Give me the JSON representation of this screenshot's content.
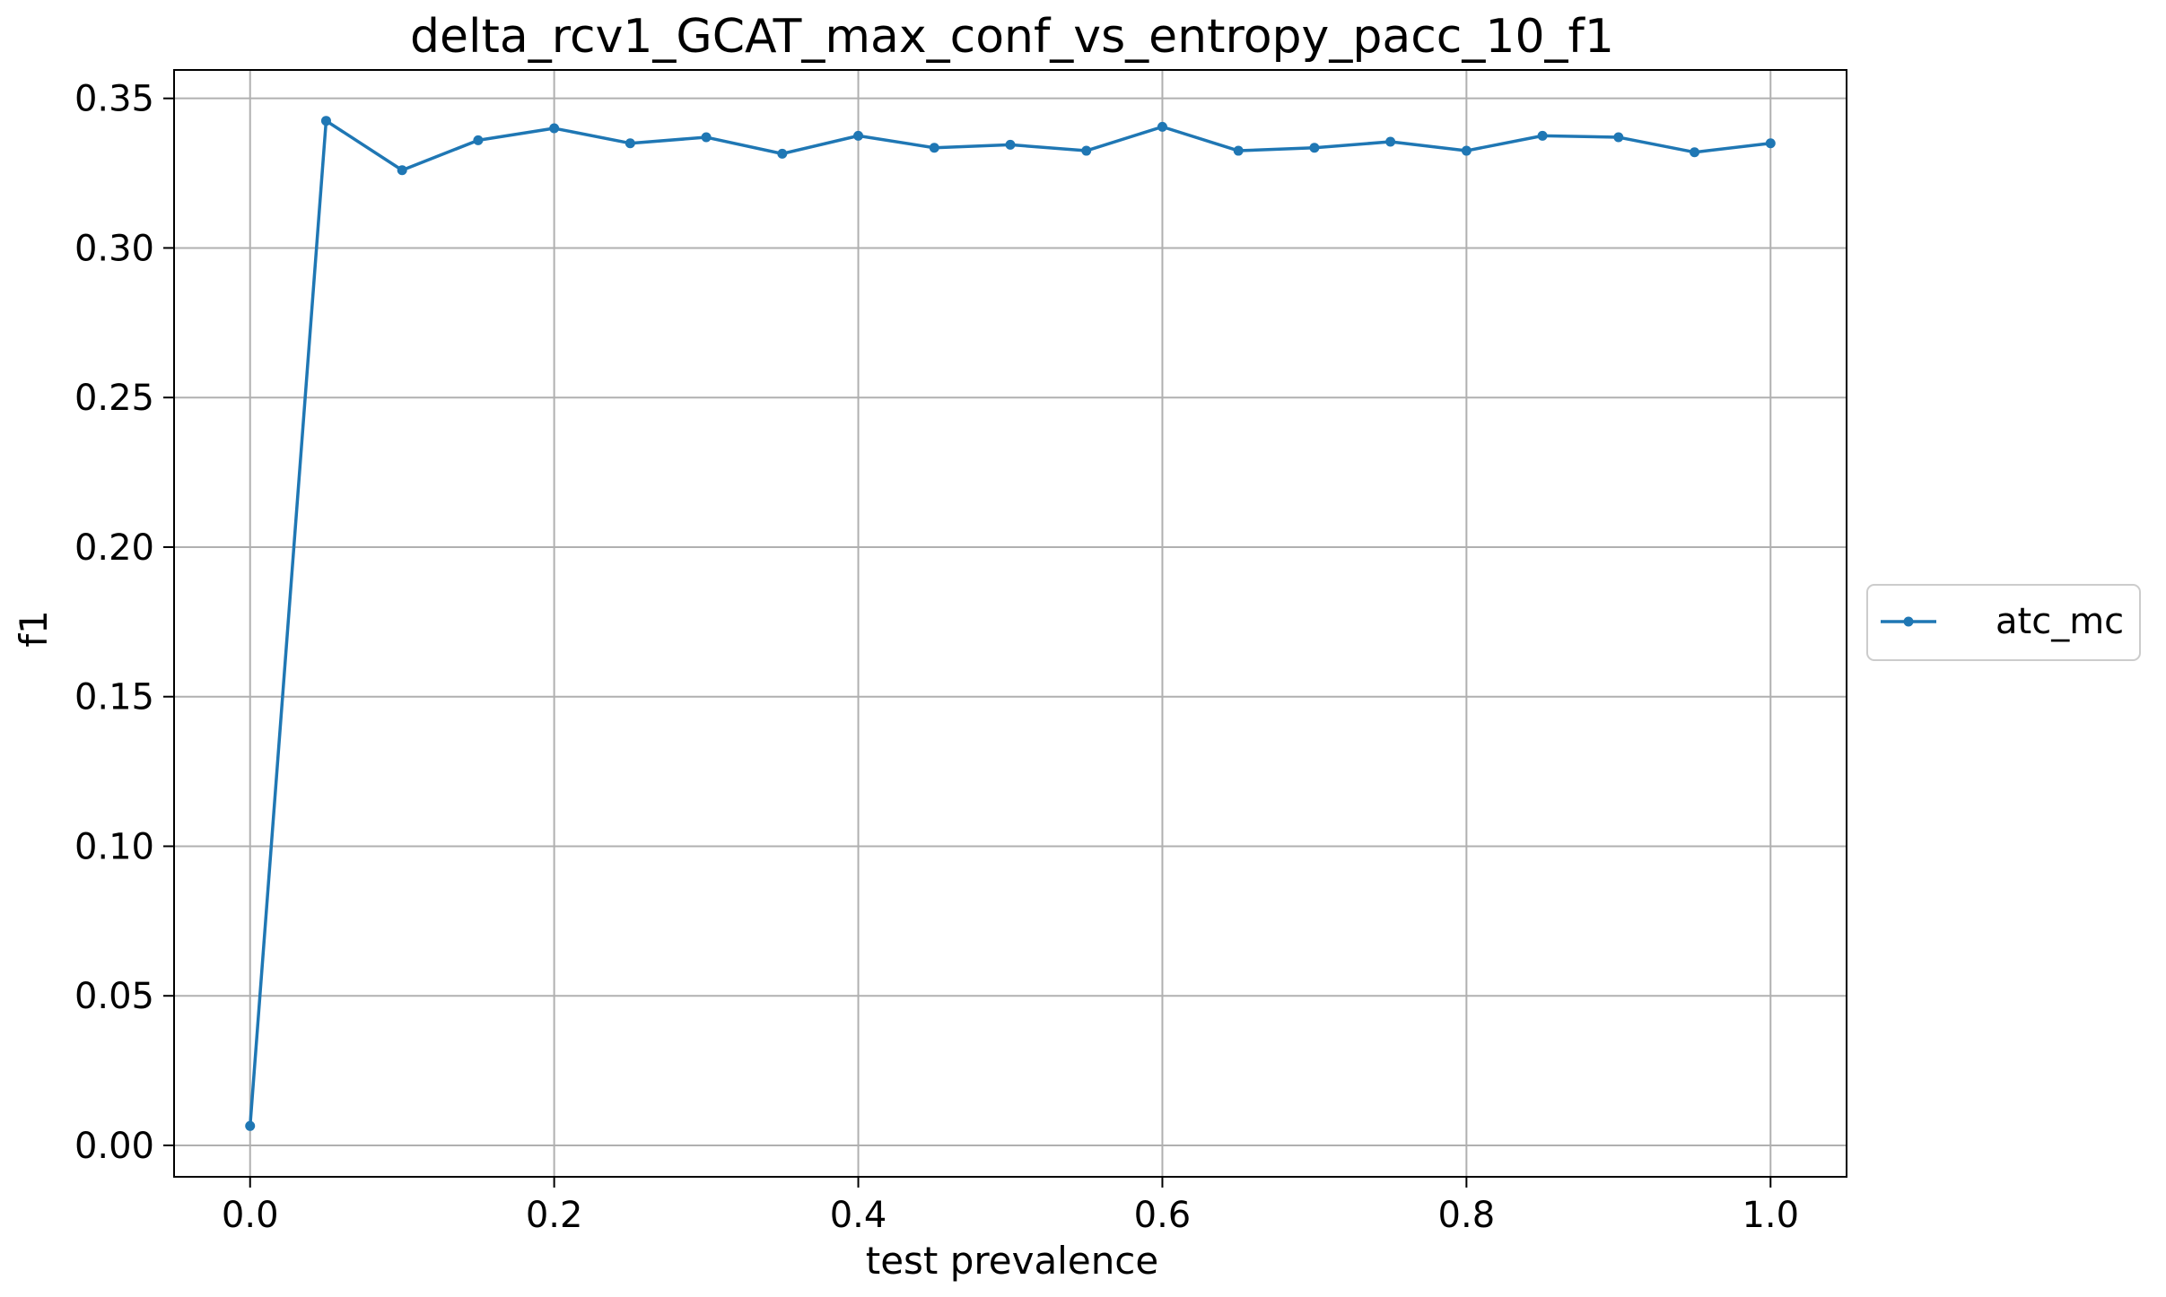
{
  "chart_data": {
    "type": "line",
    "title": "delta_rcv1_GCAT_max_conf_vs_entropy_pacc_10_f1",
    "xlabel": "test prevalence",
    "ylabel": "f1",
    "xlim": [
      -0.05,
      1.05
    ],
    "ylim": [
      -0.0105,
      0.3595
    ],
    "x_ticks": [
      0.0,
      0.2,
      0.4,
      0.6,
      0.8,
      1.0
    ],
    "x_tick_labels": [
      "0.0",
      "0.2",
      "0.4",
      "0.6",
      "0.8",
      "1.0"
    ],
    "y_ticks": [
      0.0,
      0.05,
      0.1,
      0.15,
      0.2,
      0.25,
      0.3,
      0.35
    ],
    "y_tick_labels": [
      "0.00",
      "0.05",
      "0.10",
      "0.15",
      "0.20",
      "0.25",
      "0.30",
      "0.35"
    ],
    "grid": true,
    "legend_position": "right",
    "x": [
      0.0,
      0.05,
      0.1,
      0.15,
      0.2,
      0.25,
      0.3,
      0.35,
      0.4,
      0.45,
      0.5,
      0.55,
      0.6,
      0.65,
      0.7,
      0.75,
      0.8,
      0.85,
      0.9,
      0.95,
      1.0
    ],
    "series": [
      {
        "name": "atc_mc",
        "color": "#1f77b4",
        "marker": "circle",
        "values": [
          0.0065,
          0.3425,
          0.326,
          0.336,
          0.34,
          0.335,
          0.337,
          0.3315,
          0.3375,
          0.3335,
          0.3345,
          0.3325,
          0.3405,
          0.3325,
          0.3335,
          0.3355,
          0.3325,
          0.3375,
          0.337,
          0.332,
          0.335
        ]
      }
    ]
  }
}
